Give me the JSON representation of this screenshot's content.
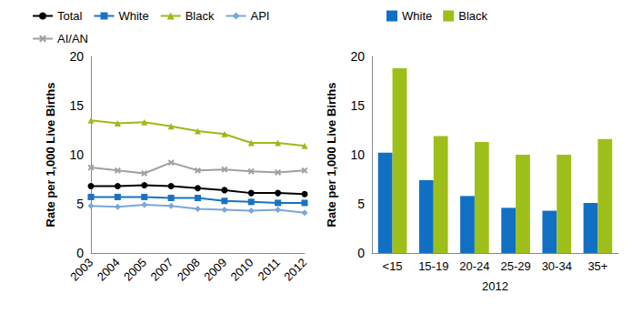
{
  "chart_data": [
    {
      "type": "line",
      "categories": [
        "2003",
        "2004",
        "2005",
        "2007",
        "2008",
        "2009",
        "2010",
        "2011",
        "2012"
      ],
      "y_label": "Rate per 1,000 Live Births",
      "ylim": [
        0,
        20
      ],
      "yticks": [
        0,
        5,
        10,
        15,
        20
      ],
      "grid": false,
      "legend": "top",
      "series": [
        {
          "name": "Total",
          "color": "#000000",
          "marker": "circle",
          "values": [
            6.8,
            6.8,
            6.9,
            6.8,
            6.6,
            6.4,
            6.1,
            6.1,
            6.0
          ]
        },
        {
          "name": "White",
          "color": "#1a72c2",
          "marker": "square",
          "values": [
            5.7,
            5.7,
            5.7,
            5.6,
            5.6,
            5.3,
            5.2,
            5.1,
            5.1
          ]
        },
        {
          "name": "Black",
          "color": "#9bbb1a",
          "marker": "triangle",
          "values": [
            13.5,
            13.2,
            13.3,
            12.9,
            12.4,
            12.1,
            11.2,
            11.2,
            10.9
          ]
        },
        {
          "name": "API",
          "color": "#7aa7d8",
          "marker": "diamond",
          "values": [
            4.8,
            4.7,
            4.9,
            4.8,
            4.5,
            4.4,
            4.3,
            4.4,
            4.1
          ]
        },
        {
          "name": "AI/AN",
          "color": "#a0a0a0",
          "marker": "x",
          "values": [
            8.7,
            8.4,
            8.1,
            9.2,
            8.4,
            8.5,
            8.3,
            8.2,
            8.4
          ]
        }
      ]
    },
    {
      "type": "bar",
      "categories": [
        "<15",
        "15-19",
        "20-24",
        "25-29",
        "30-34",
        "35+"
      ],
      "x_label": "2012",
      "y_label": "Rate per 1,000 Live Births",
      "ylim": [
        0,
        20
      ],
      "yticks": [
        0,
        5,
        10,
        15,
        20
      ],
      "grid": false,
      "legend": "top",
      "series": [
        {
          "name": "White",
          "color": "#1170c4",
          "values": [
            10.2,
            7.4,
            5.8,
            4.6,
            4.3,
            5.1
          ]
        },
        {
          "name": "Black",
          "color": "#9ebf1a",
          "values": [
            18.8,
            11.9,
            11.3,
            10.0,
            10.0,
            11.6
          ]
        }
      ]
    }
  ]
}
